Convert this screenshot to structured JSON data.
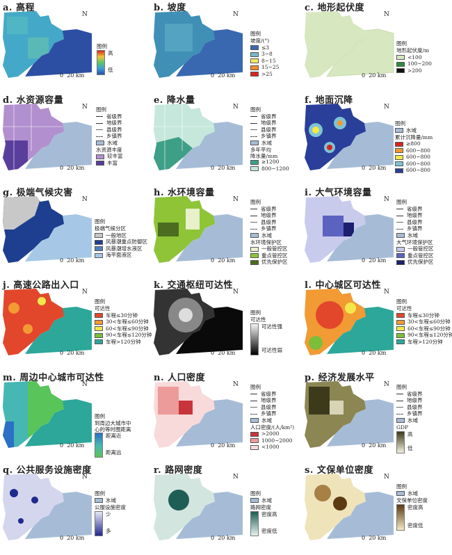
{
  "common": {
    "north": "N",
    "scale_zero": "0",
    "scale_label": "20 km"
  },
  "colors": {
    "water": "#a6bcd6",
    "land_light": "#d7e7bf"
  },
  "panels": [
    {
      "key": "a",
      "title": "a. 高程",
      "legend_title": "图例",
      "high": "高",
      "low": "低"
    },
    {
      "key": "b",
      "title": "b. 坡度",
      "legend_title": "图例",
      "unit": "坡度/(°)",
      "items": [
        {
          "label": "≤3",
          "color": "#3a68b0"
        },
        {
          "label": "3~8",
          "color": "#79b6c9"
        },
        {
          "label": "8~15",
          "color": "#f2e96b"
        },
        {
          "label": "15~25",
          "color": "#ef8c32"
        },
        {
          "label": ">25",
          "color": "#d8231e"
        }
      ]
    },
    {
      "key": "c",
      "title": "c. 地形起伏度",
      "legend_title": "图例",
      "unit": "地形起伏度/m",
      "items": [
        {
          "label": "<100",
          "color": "#d7e7bf"
        },
        {
          "label": "100~200",
          "color": "#2e8b3e"
        },
        {
          "label": ">200",
          "color": "#111111"
        }
      ]
    },
    {
      "key": "d",
      "title": "d. 水资源容量",
      "legend_title": "图例",
      "lines": [
        "省级界",
        "地级界",
        "县级界",
        "乡镇界"
      ],
      "water": "水域",
      "sub": "水资源丰度",
      "items": [
        {
          "label": "较丰富",
          "color": "#b28fcf"
        },
        {
          "label": "丰富",
          "color": "#5a3e9c"
        }
      ]
    },
    {
      "key": "e",
      "title": "e. 降水量",
      "legend_title": "图例",
      "lines": [
        "省级界",
        "地级界",
        "县级界",
        "乡镇界"
      ],
      "water": "水域",
      "sub": "多年平均\n降水量/mm",
      "items": [
        {
          "label": "≥1200",
          "color": "#3e9f87"
        },
        {
          "label": "800~1200",
          "color": "#c6e7db"
        }
      ]
    },
    {
      "key": "f",
      "title": "f. 地面沉降",
      "legend_title": "图例",
      "water": "水域",
      "sub": "累计沉降量/mm",
      "items": [
        {
          "label": "≥800",
          "color": "#d8231e"
        },
        {
          "label": "600~800",
          "color": "#f29a33"
        },
        {
          "label": "600~800",
          "color": "#f3e84b"
        },
        {
          "label": "600~800",
          "color": "#7fc4d4"
        },
        {
          "label": "600~800",
          "color": "#2a3f9a"
        }
      ]
    },
    {
      "key": "g",
      "title": "g. 极端气候灾害",
      "legend_title": "图例",
      "sub": "极端气候分区",
      "items": [
        {
          "label": "一般地区",
          "color": "#c8c8c8"
        },
        {
          "label": "风暴潮重点防御区",
          "color": "#1e3f8f"
        },
        {
          "label": "风暴潮增水液区",
          "color": "#4f7fc1"
        },
        {
          "label": "海平面液区",
          "color": "#a6c8e6"
        }
      ]
    },
    {
      "key": "h",
      "title": "h. 水环境容量",
      "legend_title": "图例",
      "lines": [
        "省级界",
        "地级界",
        "县级界",
        "乡镇界"
      ],
      "water": "水域",
      "sub": "水环境保护区",
      "items": [
        {
          "label": "一般管控区",
          "color": "#e8f1c9"
        },
        {
          "label": "重点管控区",
          "color": "#8fc437"
        },
        {
          "label": "优先保护区",
          "color": "#4c6d1f"
        }
      ]
    },
    {
      "key": "i",
      "title": "i. 大气环境容量",
      "legend_title": "图例",
      "lines": [
        "省级界",
        "地级界",
        "县级界",
        "乡镇界"
      ],
      "water": "水域",
      "sub": "大气环境保护区",
      "items": [
        {
          "label": "一般管控区",
          "color": "#c9cbed"
        },
        {
          "label": "重点管控区",
          "color": "#5b62c0"
        },
        {
          "label": "优先保护区",
          "color": "#1b1f6e"
        }
      ]
    },
    {
      "key": "j",
      "title": "j. 高速公路出入口",
      "legend_title": "图例",
      "sub": "可达性",
      "items": [
        {
          "label": "车程≤30分钟",
          "color": "#e2472b"
        },
        {
          "label": "30<车程≤60分钟",
          "color": "#f29a33"
        },
        {
          "label": "60<车程≤90分钟",
          "color": "#f3e84b"
        },
        {
          "label": "90<车程≤120分钟",
          "color": "#7cbe3a"
        },
        {
          "label": "车程>120分钟",
          "color": "#2ca79a"
        }
      ]
    },
    {
      "key": "k",
      "title": "k. 交通枢纽可达性",
      "legend_title": "图例",
      "sub": "可达性",
      "high": "可达性强",
      "low": "可达性弱"
    },
    {
      "key": "l",
      "title": "l. 中心城区可达性",
      "legend_title": "图例",
      "sub": "可达性",
      "items": [
        {
          "label": "车程≤30分钟",
          "color": "#e2472b"
        },
        {
          "label": "30<车程≤60分钟",
          "color": "#f29a33"
        },
        {
          "label": "60<车程≤90分钟",
          "color": "#f3e84b"
        },
        {
          "label": "90<车程≤120分钟",
          "color": "#7cbe3a"
        },
        {
          "label": "车程>120分钟",
          "color": "#2ca79a"
        }
      ]
    },
    {
      "key": "m",
      "title": "m. 周边中心城市可达性",
      "legend_title": "图例",
      "sub": "到周边大城市中\n心的等时圈距离",
      "high": "距离近",
      "low": "距离远"
    },
    {
      "key": "n",
      "title": "n. 人口密度",
      "legend_title": "图例",
      "lines": [
        "省级界",
        "地级界",
        "县级界",
        "乡镇界"
      ],
      "water": "水域",
      "sub": "人口密度/(人/km²)",
      "items": [
        {
          "label": ">2000",
          "color": "#c8343b"
        },
        {
          "label": "1000~2000",
          "color": "#ec9b9a"
        },
        {
          "label": "<1000",
          "color": "#f8dada"
        }
      ]
    },
    {
      "key": "p",
      "title": "p. 经济发展水平",
      "legend_title": "图例",
      "lines": [
        "省级界",
        "地级界",
        "县级界",
        "乡镇界"
      ],
      "water": "水域",
      "sub": "GDP",
      "high": "高",
      "low": "低"
    },
    {
      "key": "q",
      "title": "q. 公共服务设施密度",
      "legend_title": "图例",
      "water": "水域",
      "sub": "公服设施密度",
      "high": "少",
      "low": "多"
    },
    {
      "key": "r",
      "title": "r. 路网密度",
      "legend_title": "图例",
      "water": "水域",
      "sub": "路网密度",
      "high": "密度高",
      "low": "密度低"
    },
    {
      "key": "s",
      "title": "s. 文保单位密度",
      "legend_title": "图例",
      "water": "水域",
      "sub": "文保单位密度",
      "high": "密度高",
      "low": "密度低"
    }
  ]
}
